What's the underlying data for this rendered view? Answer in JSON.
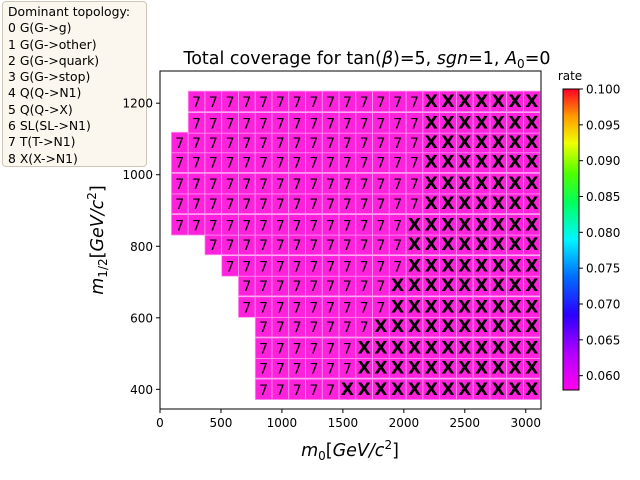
{
  "legend": {
    "title": "Dominant topology:",
    "entries": [
      "0 G(G->g)",
      "1 G(G->other)",
      "2 G(G->quark)",
      "3 G(G->stop)",
      "4 Q(Q->N1)",
      "5 Q(Q->X)",
      "6 SL(SL->N1)",
      "7 T(T->N1)",
      "8 X(X->N1)"
    ]
  },
  "chart_data": {
    "type": "heatmap",
    "title_parts": [
      "Total coverage for tan(",
      "β",
      ")=5, ",
      "sgn",
      "=1, ",
      "A",
      "0",
      "=0"
    ],
    "xlabel_parts": [
      "m",
      "0",
      "[",
      "GeV/c",
      "2",
      "]"
    ],
    "ylabel_parts": [
      "m",
      "1/2",
      "[",
      "GeV/c",
      "2",
      "]"
    ],
    "xlim": [
      0,
      3125
    ],
    "ylim": [
      345,
      1290
    ],
    "xticks": [
      0,
      500,
      1000,
      1500,
      2000,
      2500,
      3000
    ],
    "yticks": [
      400,
      600,
      800,
      1000,
      1200
    ],
    "x_step": 137.5,
    "y_step": 57.5,
    "rows": [
      {
        "y": 400,
        "x_min": 850,
        "n7": 5
      },
      {
        "y": 460,
        "x_min": 850,
        "n7": 6
      },
      {
        "y": 515,
        "x_min": 850,
        "n7": 6
      },
      {
        "y": 575,
        "x_min": 850,
        "n7": 7
      },
      {
        "y": 630,
        "x_min": 712,
        "n7": 9
      },
      {
        "y": 690,
        "x_min": 712,
        "n7": 9
      },
      {
        "y": 745,
        "x_min": 575,
        "n7": 11
      },
      {
        "y": 805,
        "x_min": 437,
        "n7": 12
      },
      {
        "y": 860,
        "x_min": 162,
        "n7": 14
      },
      {
        "y": 920,
        "x_min": 162,
        "n7": 15
      },
      {
        "y": 975,
        "x_min": 162,
        "n7": 15
      },
      {
        "y": 1035,
        "x_min": 162,
        "n7": 15
      },
      {
        "y": 1090,
        "x_min": 162,
        "n7": 15
      },
      {
        "y": 1145,
        "x_min": 300,
        "n7": 14
      },
      {
        "y": 1205,
        "x_min": 300,
        "n7": 14
      }
    ],
    "x_max": 3050,
    "cell_value": 0.058,
    "cell_color": "#ff22dd",
    "cell_edge_color": "#ff99f0",
    "label_seven": "7",
    "label_x": "X",
    "colorbar": {
      "label": "rate",
      "min": 0.058,
      "max": 0.1,
      "ticks": [
        "0.060",
        "0.065",
        "0.070",
        "0.075",
        "0.080",
        "0.085",
        "0.090",
        "0.095",
        "0.100"
      ],
      "tick_values": [
        0.06,
        0.065,
        0.07,
        0.075,
        0.08,
        0.085,
        0.09,
        0.095,
        0.1
      ],
      "colormap": "gist_rainbow_r"
    }
  }
}
